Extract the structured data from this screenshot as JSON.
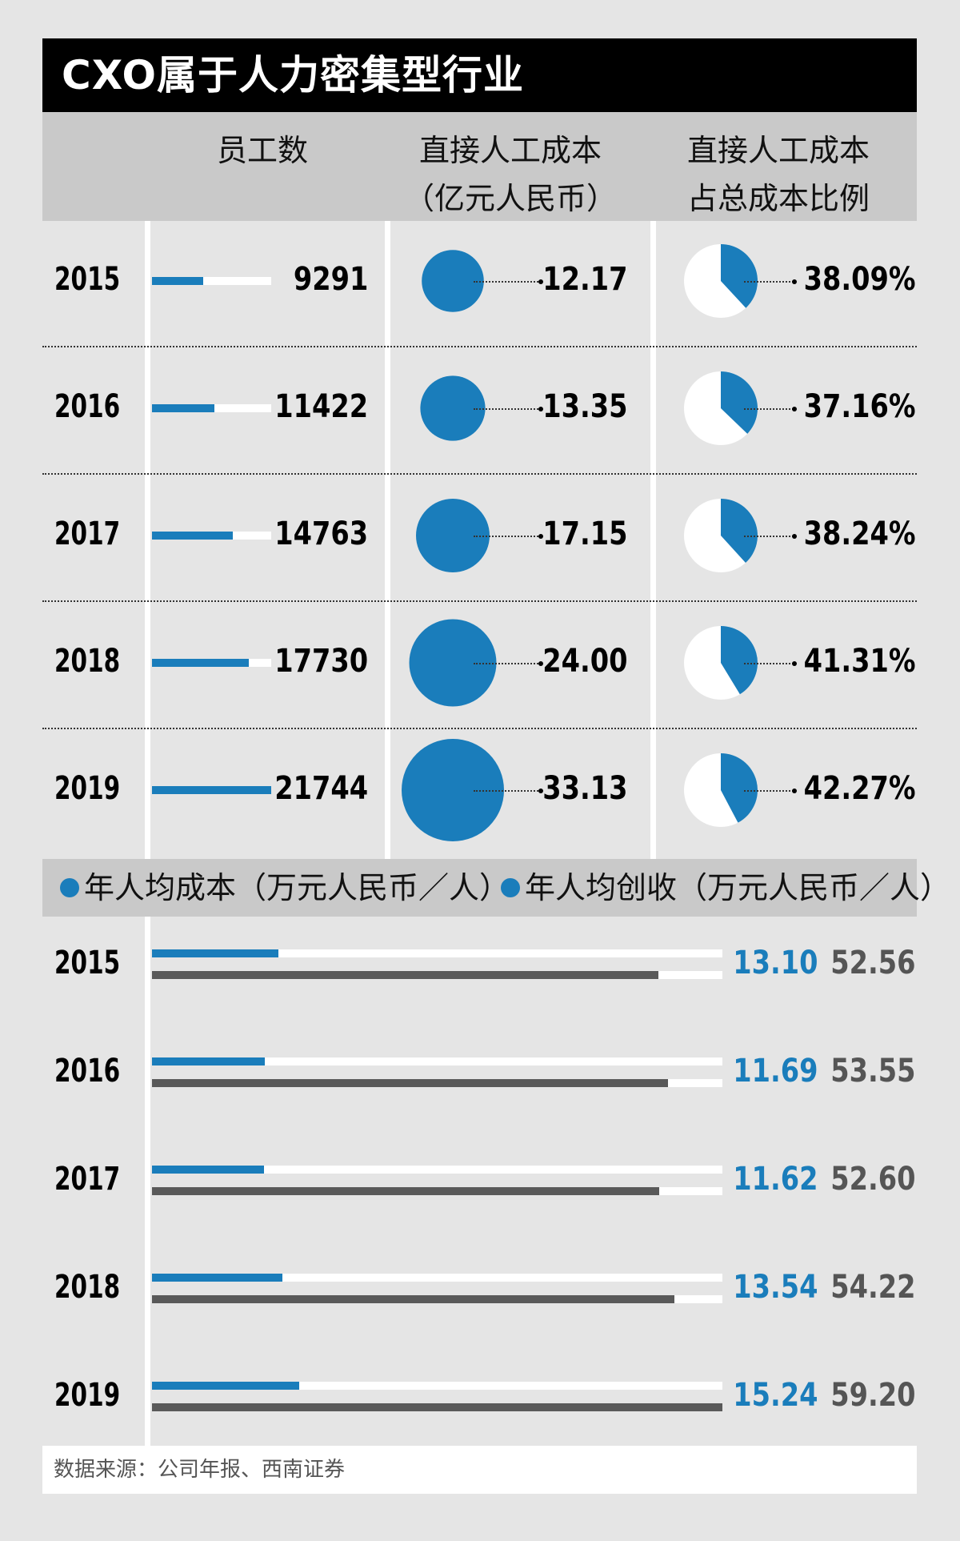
{
  "title": "CXO属于人力密集型行业",
  "header": {
    "employees": "员工数",
    "labor_cost_line1": "直接人工成本",
    "labor_cost_line2": "（亿元人民币）",
    "ratio_line1": "直接人工成本",
    "ratio_line2": "占总成本比例"
  },
  "legend": {
    "cost": "年人均成本（万元人民币／人）",
    "revenue": "年人均创收（万元人民币／人）"
  },
  "source": "数据来源：公司年报、西南证券",
  "colors": {
    "accent": "#1a7dbb",
    "gray_bar": "#595959",
    "header_bg": "#c9c9c9",
    "title_bg": "#000000"
  },
  "chart_data": [
    {
      "type": "table",
      "categories": [
        "2015",
        "2016",
        "2017",
        "2018",
        "2019"
      ],
      "series": [
        {
          "name": "员工数",
          "values": [
            9291,
            11422,
            14763,
            17730,
            21744
          ],
          "labels": [
            "9291",
            "11422",
            "14763",
            "17730",
            "21744"
          ]
        },
        {
          "name": "直接人工成本（亿元人民币）",
          "values": [
            12.17,
            13.35,
            17.15,
            24.0,
            33.13
          ],
          "labels": [
            "12.17",
            "13.35",
            "17.15",
            "24.00",
            "33.13"
          ]
        },
        {
          "name": "直接人工成本占总成本比例",
          "values": [
            38.09,
            37.16,
            38.24,
            41.31,
            42.27
          ],
          "labels": [
            "38.09%",
            "37.16%",
            "38.24%",
            "41.31%",
            "42.27%"
          ]
        }
      ]
    },
    {
      "type": "bar",
      "categories": [
        "2015",
        "2016",
        "2017",
        "2018",
        "2019"
      ],
      "series": [
        {
          "name": "年人均成本（万元人民币／人）",
          "values": [
            13.1,
            11.69,
            11.62,
            13.54,
            15.24
          ],
          "labels": [
            "13.10",
            "11.69",
            "11.62",
            "13.54",
            "15.24"
          ]
        },
        {
          "name": "年人均创收（万元人民币／人）",
          "values": [
            52.56,
            53.55,
            52.6,
            54.22,
            59.2
          ],
          "labels": [
            "52.56",
            "53.55",
            "52.60",
            "54.22",
            "59.20"
          ]
        }
      ]
    }
  ]
}
